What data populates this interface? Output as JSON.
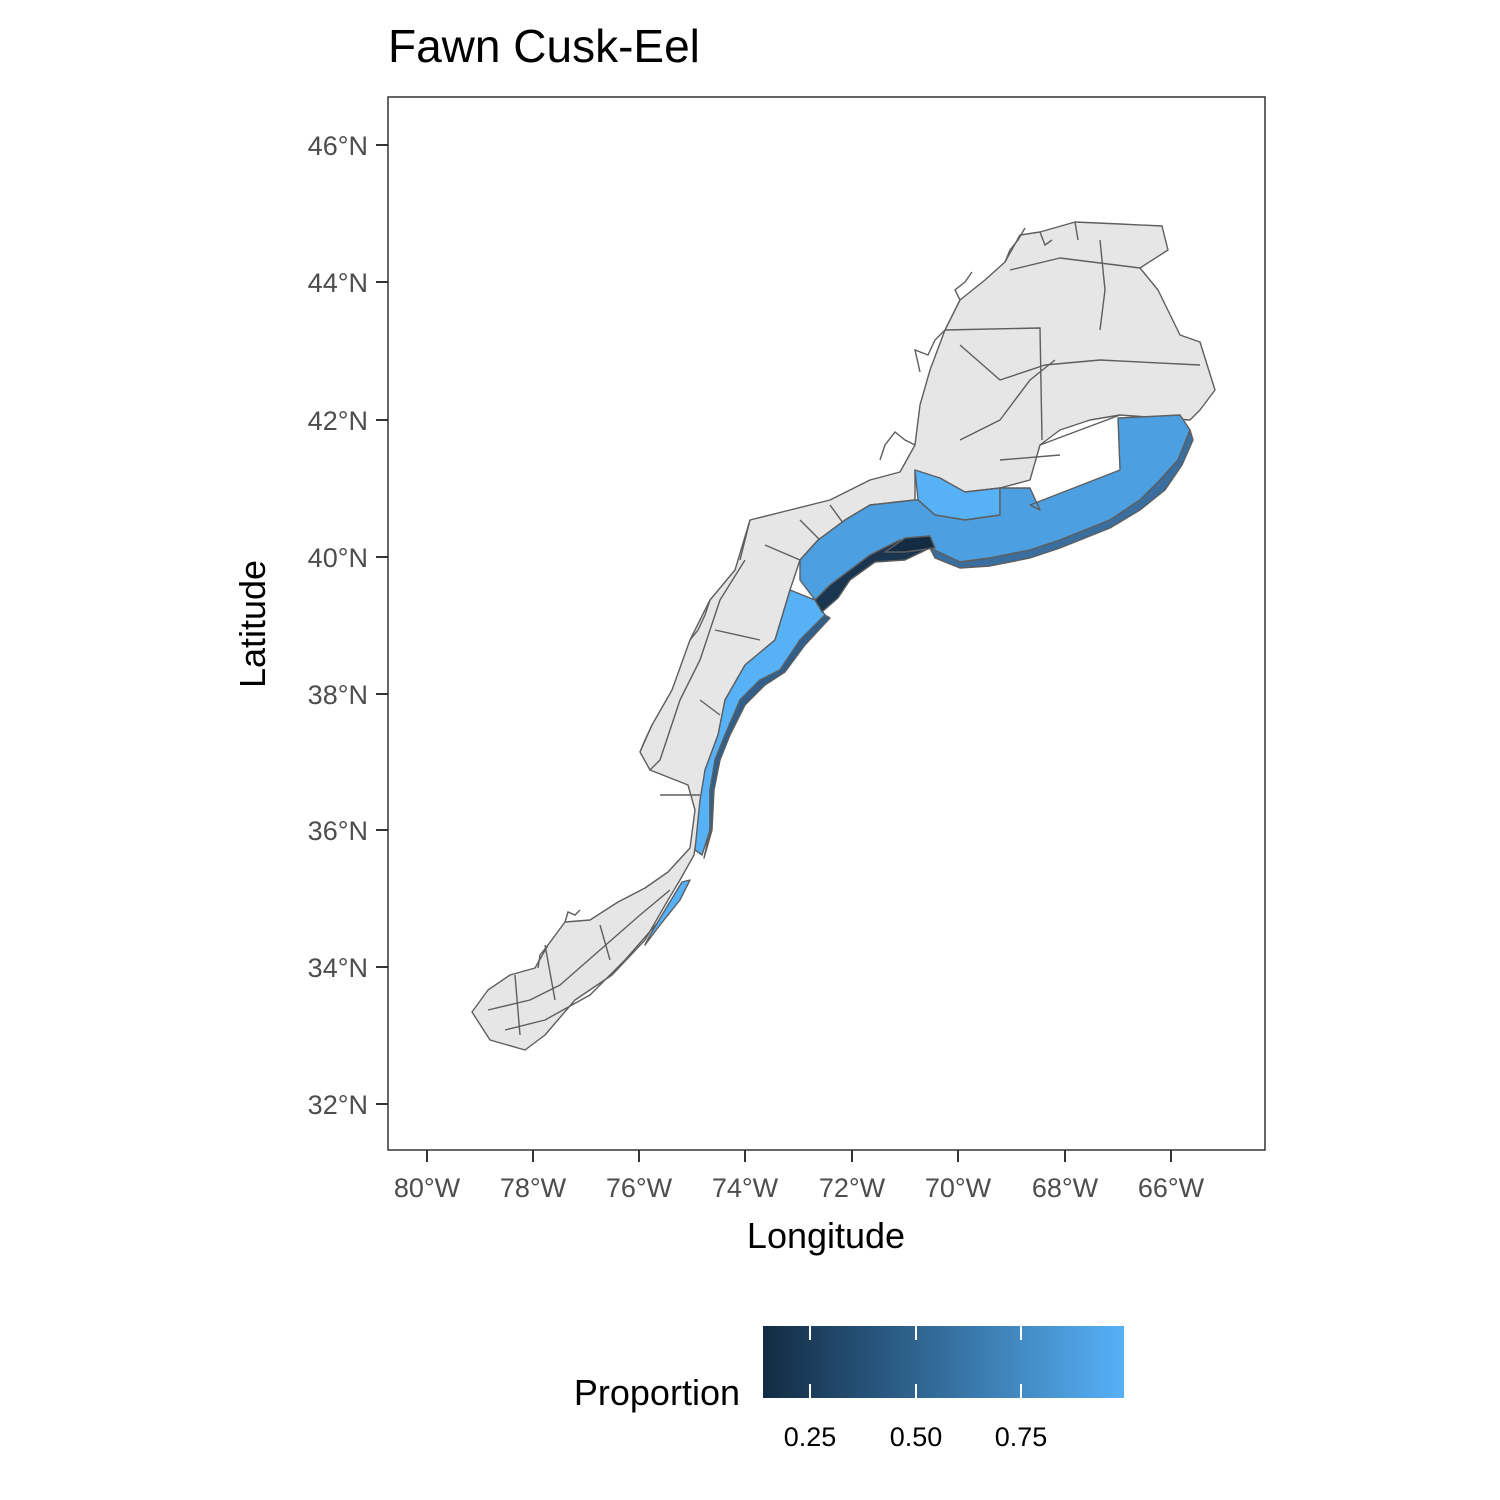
{
  "title": "Fawn Cusk-Eel",
  "axes": {
    "xlabel": "Longitude",
    "ylabel": "Latitude",
    "x_ticks": [
      "80°W",
      "78°W",
      "76°W",
      "74°W",
      "72°W",
      "70°W",
      "68°W",
      "66°W"
    ],
    "y_ticks": [
      "46°N",
      "44°N",
      "42°N",
      "40°N",
      "38°N",
      "36°N",
      "34°N",
      "32°N"
    ]
  },
  "legend": {
    "title": "Proportion",
    "labels": [
      "0.25",
      "0.50",
      "0.75"
    ],
    "color_low": "#132B43",
    "color_high": "#56B1F7"
  },
  "colors": {
    "land_fill": "#e6e6e6",
    "outline": "#5e5e5e",
    "panel_border": "#333333"
  }
}
